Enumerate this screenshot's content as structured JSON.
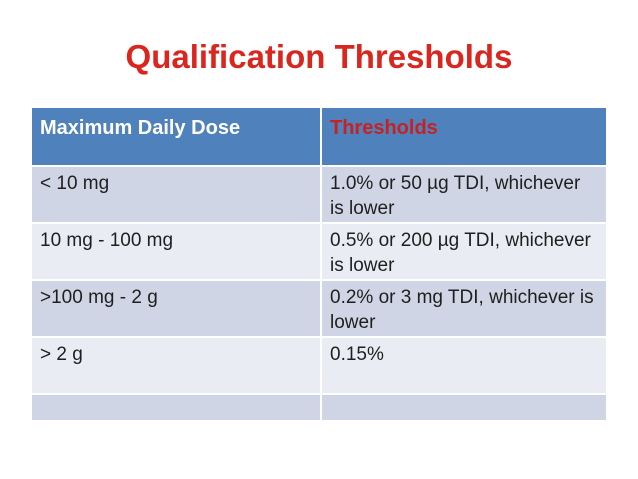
{
  "slide": {
    "title": "Qualification Thresholds"
  },
  "table": {
    "headers": {
      "dose": "Maximum Daily Dose",
      "threshold": "Thresholds"
    },
    "rows": [
      {
        "dose": "< 10 mg",
        "threshold": "1.0% or 50 µg TDI, whichever is lower"
      },
      {
        "dose": "10 mg - 100 mg",
        "threshold": "0.5% or 200 µg TDI, whichever is lower"
      },
      {
        "dose": ">100 mg - 2 g",
        "threshold": "0.2% or 3 mg TDI, whichever is lower"
      },
      {
        "dose": "> 2 g",
        "threshold": "0.15%"
      },
      {
        "dose": "",
        "threshold": ""
      }
    ]
  },
  "theme": {
    "header-bg": "#4F81BD",
    "band-dark": "#CFD5E4",
    "band-light": "#E9ECF3",
    "title-red": "#D9261F",
    "threshold-red": "#C62222",
    "header-text": "#FFFFFF",
    "text-dark": "#1F1F1F",
    "slide-bg": "#FFFFFF"
  }
}
